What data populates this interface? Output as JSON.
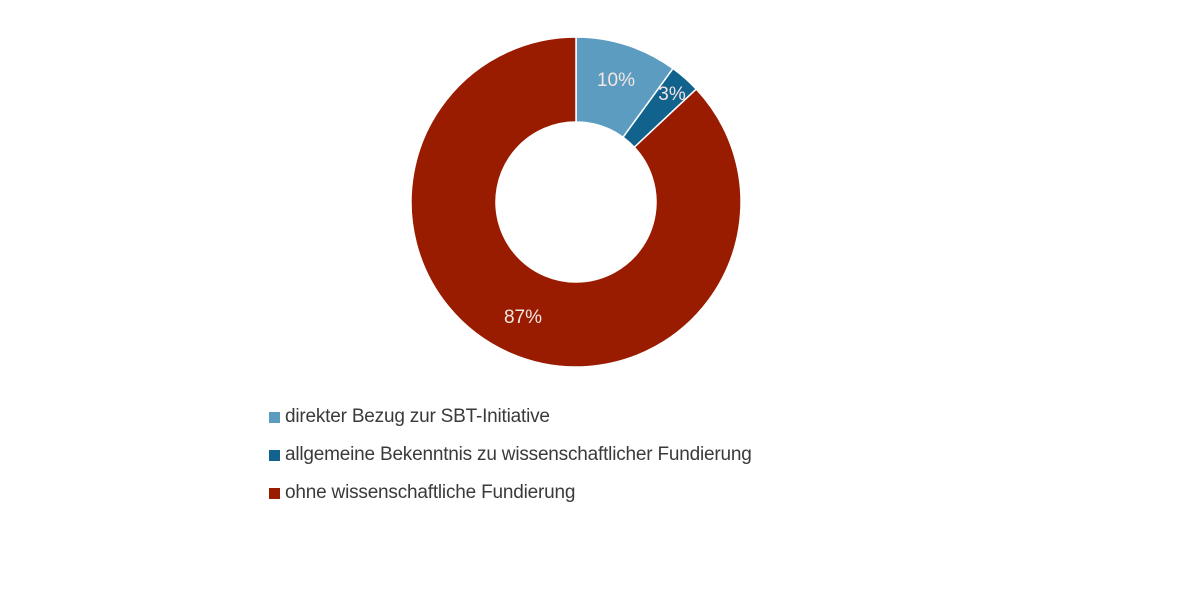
{
  "chart_data": {
    "type": "pie",
    "subtype": "donut",
    "title": "",
    "categories": [
      "direkter Bezug zur SBT-Initiative",
      "allgemeine Bekenntnis zu wissenschaftlicher Fundierung",
      "ohne wissenschaftliche Fundierung"
    ],
    "values": [
      10,
      3,
      87
    ],
    "labels": [
      "10%",
      "3%",
      "87%"
    ],
    "colors": [
      "#5b9cc0",
      "#12628e",
      "#9a1c00"
    ],
    "legend_position": "bottom",
    "start_angle": "12 o'clock, clockwise"
  },
  "legend": {
    "items": [
      {
        "label": "direkter Bezug zur SBT-Initiative",
        "color": "#5b9cc0"
      },
      {
        "label": "allgemeine Bekenntnis zu wissenschaftlicher Fundierung",
        "color": "#12628e"
      },
      {
        "label": "ohne wissenschaftliche Fundierung",
        "color": "#9a1c00"
      }
    ]
  }
}
